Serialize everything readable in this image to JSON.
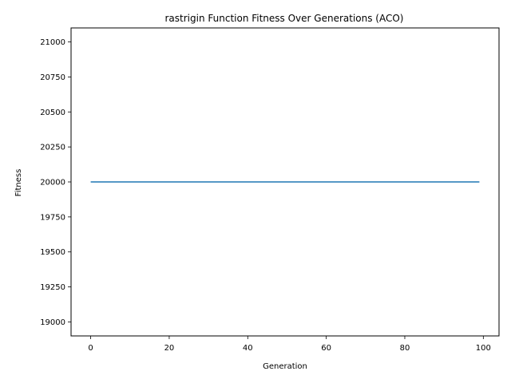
{
  "chart_data": {
    "type": "line",
    "title": "rastrigin Function Fitness Over Generations (ACO)",
    "xlabel": "Generation",
    "ylabel": "Fitness",
    "xlim": [
      -5,
      104
    ],
    "ylim": [
      18900,
      21100
    ],
    "x_ticks": [
      0,
      20,
      40,
      60,
      80,
      100
    ],
    "y_ticks": [
      19000,
      19250,
      19500,
      19750,
      20000,
      20250,
      20500,
      20750,
      21000
    ],
    "grid": false,
    "series": [
      {
        "color": "#1f77b4",
        "x": [
          0,
          99
        ],
        "y": [
          20000,
          20000
        ]
      }
    ]
  }
}
